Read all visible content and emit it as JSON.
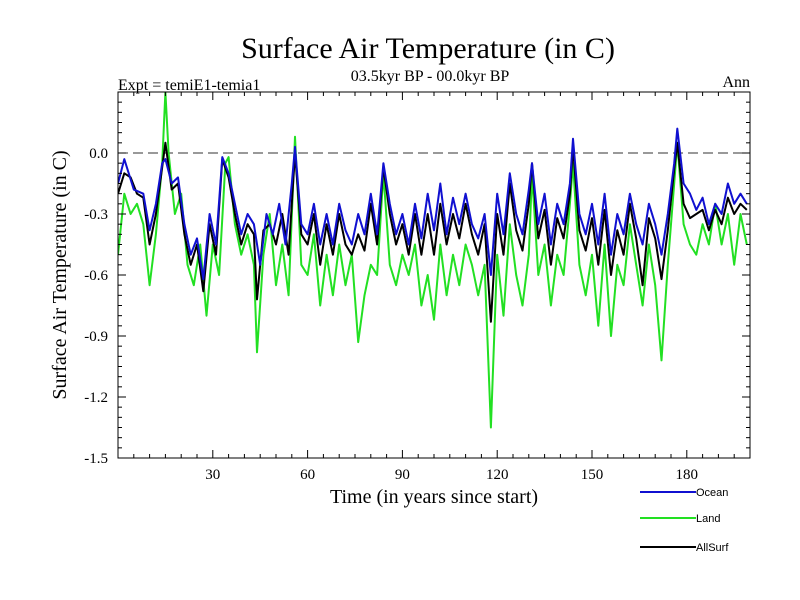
{
  "chart_data": {
    "type": "line",
    "title": "Surface Air Temperature (in C)",
    "subtitle": "03.5kyr BP - 00.0kyr BP",
    "left_label": "Expt = temiE1-temia1",
    "right_label": "Ann",
    "xlabel": "Time (in years since start)",
    "ylabel": "Surface Air Temperature (in C)",
    "xlim": [
      0,
      200
    ],
    "ylim": [
      -1.5,
      0.3
    ],
    "x_ticks": [
      30,
      60,
      90,
      120,
      150,
      180
    ],
    "y_ticks": [
      0.0,
      -0.3,
      -0.6,
      -0.9,
      -1.2,
      -1.5
    ],
    "y_tick_labels": [
      "0.0",
      "-0.3",
      "-0.6",
      "-0.9",
      "-1.2",
      "-1.5"
    ],
    "reference_line": 0.0,
    "legend_position": "bottom-right",
    "series": [
      {
        "name": "Ocean",
        "color": "#1010d0",
        "keypoints": [
          [
            0,
            -0.15
          ],
          [
            2,
            -0.03
          ],
          [
            5,
            -0.18
          ],
          [
            8,
            -0.2
          ],
          [
            10,
            -0.38
          ],
          [
            12,
            -0.25
          ],
          [
            14,
            -0.05
          ],
          [
            15,
            -0.03
          ],
          [
            17,
            -0.15
          ],
          [
            19,
            -0.12
          ],
          [
            21,
            -0.35
          ],
          [
            23,
            -0.5
          ],
          [
            25,
            -0.42
          ],
          [
            27,
            -0.62
          ],
          [
            29,
            -0.3
          ],
          [
            31,
            -0.45
          ],
          [
            33,
            -0.02
          ],
          [
            35,
            -0.1
          ],
          [
            37,
            -0.25
          ],
          [
            39,
            -0.4
          ],
          [
            41,
            -0.3
          ],
          [
            43,
            -0.35
          ],
          [
            45,
            -0.55
          ],
          [
            47,
            -0.3
          ],
          [
            49,
            -0.4
          ],
          [
            51,
            -0.25
          ],
          [
            53,
            -0.45
          ],
          [
            55,
            -0.15
          ],
          [
            56,
            0.03
          ],
          [
            58,
            -0.35
          ],
          [
            60,
            -0.4
          ],
          [
            62,
            -0.25
          ],
          [
            64,
            -0.45
          ],
          [
            66,
            -0.3
          ],
          [
            68,
            -0.45
          ],
          [
            70,
            -0.25
          ],
          [
            72,
            -0.38
          ],
          [
            74,
            -0.45
          ],
          [
            76,
            -0.3
          ],
          [
            78,
            -0.4
          ],
          [
            80,
            -0.2
          ],
          [
            82,
            -0.4
          ],
          [
            84,
            -0.05
          ],
          [
            86,
            -0.25
          ],
          [
            88,
            -0.4
          ],
          [
            90,
            -0.3
          ],
          [
            92,
            -0.45
          ],
          [
            94,
            -0.25
          ],
          [
            96,
            -0.42
          ],
          [
            98,
            -0.2
          ],
          [
            100,
            -0.38
          ],
          [
            102,
            -0.15
          ],
          [
            104,
            -0.4
          ],
          [
            106,
            -0.22
          ],
          [
            108,
            -0.35
          ],
          [
            110,
            -0.2
          ],
          [
            112,
            -0.35
          ],
          [
            114,
            -0.42
          ],
          [
            116,
            -0.3
          ],
          [
            118,
            -0.6
          ],
          [
            120,
            -0.2
          ],
          [
            122,
            -0.4
          ],
          [
            124,
            -0.1
          ],
          [
            126,
            -0.3
          ],
          [
            128,
            -0.4
          ],
          [
            130,
            -0.18
          ],
          [
            131,
            -0.05
          ],
          [
            133,
            -0.35
          ],
          [
            135,
            -0.2
          ],
          [
            137,
            -0.45
          ],
          [
            139,
            -0.25
          ],
          [
            141,
            -0.35
          ],
          [
            143,
            -0.15
          ],
          [
            144,
            0.07
          ],
          [
            146,
            -0.3
          ],
          [
            148,
            -0.4
          ],
          [
            150,
            -0.25
          ],
          [
            152,
            -0.45
          ],
          [
            154,
            -0.2
          ],
          [
            156,
            -0.5
          ],
          [
            158,
            -0.3
          ],
          [
            160,
            -0.4
          ],
          [
            162,
            -0.2
          ],
          [
            164,
            -0.35
          ],
          [
            166,
            -0.45
          ],
          [
            168,
            -0.25
          ],
          [
            170,
            -0.35
          ],
          [
            172,
            -0.5
          ],
          [
            174,
            -0.3
          ],
          [
            176,
            -0.05
          ],
          [
            177,
            0.12
          ],
          [
            179,
            -0.15
          ],
          [
            181,
            -0.2
          ],
          [
            183,
            -0.28
          ],
          [
            185,
            -0.22
          ],
          [
            187,
            -0.35
          ],
          [
            189,
            -0.25
          ],
          [
            191,
            -0.3
          ],
          [
            193,
            -0.15
          ],
          [
            195,
            -0.25
          ],
          [
            197,
            -0.2
          ],
          [
            199,
            -0.25
          ]
        ]
      },
      {
        "name": "Land",
        "color": "#22e022",
        "keypoints": [
          [
            0,
            -0.5
          ],
          [
            2,
            -0.2
          ],
          [
            4,
            -0.3
          ],
          [
            6,
            -0.25
          ],
          [
            8,
            -0.35
          ],
          [
            10,
            -0.65
          ],
          [
            12,
            -0.4
          ],
          [
            14,
            -0.05
          ],
          [
            15,
            0.3
          ],
          [
            16,
            0.0
          ],
          [
            18,
            -0.3
          ],
          [
            20,
            -0.2
          ],
          [
            22,
            -0.55
          ],
          [
            24,
            -0.65
          ],
          [
            26,
            -0.45
          ],
          [
            28,
            -0.8
          ],
          [
            30,
            -0.45
          ],
          [
            32,
            -0.6
          ],
          [
            34,
            -0.05
          ],
          [
            35,
            -0.02
          ],
          [
            37,
            -0.35
          ],
          [
            39,
            -0.5
          ],
          [
            41,
            -0.4
          ],
          [
            43,
            -0.55
          ],
          [
            44,
            -0.98
          ],
          [
            46,
            -0.5
          ],
          [
            48,
            -0.3
          ],
          [
            50,
            -0.65
          ],
          [
            52,
            -0.45
          ],
          [
            54,
            -0.7
          ],
          [
            56,
            0.08
          ],
          [
            58,
            -0.55
          ],
          [
            60,
            -0.6
          ],
          [
            62,
            -0.4
          ],
          [
            64,
            -0.75
          ],
          [
            66,
            -0.5
          ],
          [
            68,
            -0.7
          ],
          [
            70,
            -0.45
          ],
          [
            72,
            -0.65
          ],
          [
            74,
            -0.5
          ],
          [
            76,
            -0.93
          ],
          [
            78,
            -0.7
          ],
          [
            80,
            -0.55
          ],
          [
            82,
            -0.6
          ],
          [
            84,
            -0.1
          ],
          [
            86,
            -0.55
          ],
          [
            88,
            -0.65
          ],
          [
            90,
            -0.5
          ],
          [
            92,
            -0.6
          ],
          [
            94,
            -0.45
          ],
          [
            96,
            -0.75
          ],
          [
            98,
            -0.6
          ],
          [
            100,
            -0.82
          ],
          [
            102,
            -0.45
          ],
          [
            104,
            -0.7
          ],
          [
            106,
            -0.5
          ],
          [
            108,
            -0.65
          ],
          [
            110,
            -0.45
          ],
          [
            112,
            -0.55
          ],
          [
            114,
            -0.7
          ],
          [
            116,
            -0.55
          ],
          [
            118,
            -1.35
          ],
          [
            120,
            -0.5
          ],
          [
            122,
            -0.8
          ],
          [
            124,
            -0.35
          ],
          [
            126,
            -0.6
          ],
          [
            128,
            -0.75
          ],
          [
            130,
            -0.5
          ],
          [
            131,
            -0.1
          ],
          [
            133,
            -0.6
          ],
          [
            135,
            -0.45
          ],
          [
            137,
            -0.75
          ],
          [
            139,
            -0.5
          ],
          [
            141,
            -0.6
          ],
          [
            143,
            -0.25
          ],
          [
            144,
            -0.05
          ],
          [
            146,
            -0.55
          ],
          [
            148,
            -0.7
          ],
          [
            150,
            -0.5
          ],
          [
            152,
            -0.85
          ],
          [
            154,
            -0.45
          ],
          [
            156,
            -0.9
          ],
          [
            158,
            -0.55
          ],
          [
            160,
            -0.65
          ],
          [
            162,
            -0.35
          ],
          [
            164,
            -0.55
          ],
          [
            166,
            -0.75
          ],
          [
            168,
            -0.45
          ],
          [
            170,
            -0.65
          ],
          [
            172,
            -1.02
          ],
          [
            174,
            -0.55
          ],
          [
            176,
            -0.15
          ],
          [
            177,
            0.05
          ],
          [
            179,
            -0.35
          ],
          [
            181,
            -0.45
          ],
          [
            183,
            -0.5
          ],
          [
            185,
            -0.35
          ],
          [
            187,
            -0.45
          ],
          [
            189,
            -0.25
          ],
          [
            191,
            -0.45
          ],
          [
            193,
            -0.3
          ],
          [
            195,
            -0.55
          ],
          [
            197,
            -0.3
          ],
          [
            199,
            -0.45
          ]
        ]
      },
      {
        "name": "AllSurf",
        "color": "#000000",
        "keypoints": [
          [
            0,
            -0.2
          ],
          [
            2,
            -0.1
          ],
          [
            4,
            -0.12
          ],
          [
            6,
            -0.2
          ],
          [
            8,
            -0.22
          ],
          [
            10,
            -0.45
          ],
          [
            12,
            -0.3
          ],
          [
            14,
            -0.07
          ],
          [
            15,
            0.05
          ],
          [
            17,
            -0.18
          ],
          [
            19,
            -0.15
          ],
          [
            21,
            -0.4
          ],
          [
            23,
            -0.55
          ],
          [
            25,
            -0.45
          ],
          [
            27,
            -0.68
          ],
          [
            29,
            -0.35
          ],
          [
            31,
            -0.5
          ],
          [
            33,
            -0.03
          ],
          [
            35,
            -0.12
          ],
          [
            37,
            -0.3
          ],
          [
            39,
            -0.45
          ],
          [
            41,
            -0.35
          ],
          [
            43,
            -0.4
          ],
          [
            44,
            -0.72
          ],
          [
            46,
            -0.38
          ],
          [
            48,
            -0.35
          ],
          [
            50,
            -0.45
          ],
          [
            52,
            -0.3
          ],
          [
            54,
            -0.5
          ],
          [
            56,
            0.0
          ],
          [
            58,
            -0.4
          ],
          [
            60,
            -0.45
          ],
          [
            62,
            -0.3
          ],
          [
            64,
            -0.55
          ],
          [
            66,
            -0.35
          ],
          [
            68,
            -0.5
          ],
          [
            70,
            -0.3
          ],
          [
            72,
            -0.45
          ],
          [
            74,
            -0.5
          ],
          [
            76,
            -0.4
          ],
          [
            78,
            -0.48
          ],
          [
            80,
            -0.25
          ],
          [
            82,
            -0.45
          ],
          [
            84,
            -0.07
          ],
          [
            86,
            -0.3
          ],
          [
            88,
            -0.45
          ],
          [
            90,
            -0.35
          ],
          [
            92,
            -0.5
          ],
          [
            94,
            -0.3
          ],
          [
            96,
            -0.5
          ],
          [
            98,
            -0.3
          ],
          [
            100,
            -0.5
          ],
          [
            102,
            -0.25
          ],
          [
            104,
            -0.45
          ],
          [
            106,
            -0.3
          ],
          [
            108,
            -0.42
          ],
          [
            110,
            -0.25
          ],
          [
            112,
            -0.4
          ],
          [
            114,
            -0.5
          ],
          [
            116,
            -0.35
          ],
          [
            118,
            -0.83
          ],
          [
            120,
            -0.3
          ],
          [
            122,
            -0.5
          ],
          [
            124,
            -0.15
          ],
          [
            126,
            -0.38
          ],
          [
            128,
            -0.48
          ],
          [
            130,
            -0.25
          ],
          [
            131,
            -0.05
          ],
          [
            133,
            -0.42
          ],
          [
            135,
            -0.28
          ],
          [
            137,
            -0.55
          ],
          [
            139,
            -0.32
          ],
          [
            141,
            -0.42
          ],
          [
            143,
            -0.2
          ],
          [
            144,
            0.03
          ],
          [
            146,
            -0.38
          ],
          [
            148,
            -0.48
          ],
          [
            150,
            -0.32
          ],
          [
            152,
            -0.55
          ],
          [
            154,
            -0.28
          ],
          [
            156,
            -0.6
          ],
          [
            158,
            -0.38
          ],
          [
            160,
            -0.5
          ],
          [
            162,
            -0.25
          ],
          [
            164,
            -0.42
          ],
          [
            166,
            -0.65
          ],
          [
            168,
            -0.32
          ],
          [
            170,
            -0.42
          ],
          [
            172,
            -0.62
          ],
          [
            174,
            -0.38
          ],
          [
            176,
            -0.08
          ],
          [
            177,
            0.05
          ],
          [
            179,
            -0.25
          ],
          [
            181,
            -0.32
          ],
          [
            183,
            -0.3
          ],
          [
            185,
            -0.28
          ],
          [
            187,
            -0.38
          ],
          [
            189,
            -0.28
          ],
          [
            191,
            -0.35
          ],
          [
            193,
            -0.22
          ],
          [
            195,
            -0.3
          ],
          [
            197,
            -0.25
          ],
          [
            199,
            -0.28
          ]
        ]
      }
    ]
  }
}
